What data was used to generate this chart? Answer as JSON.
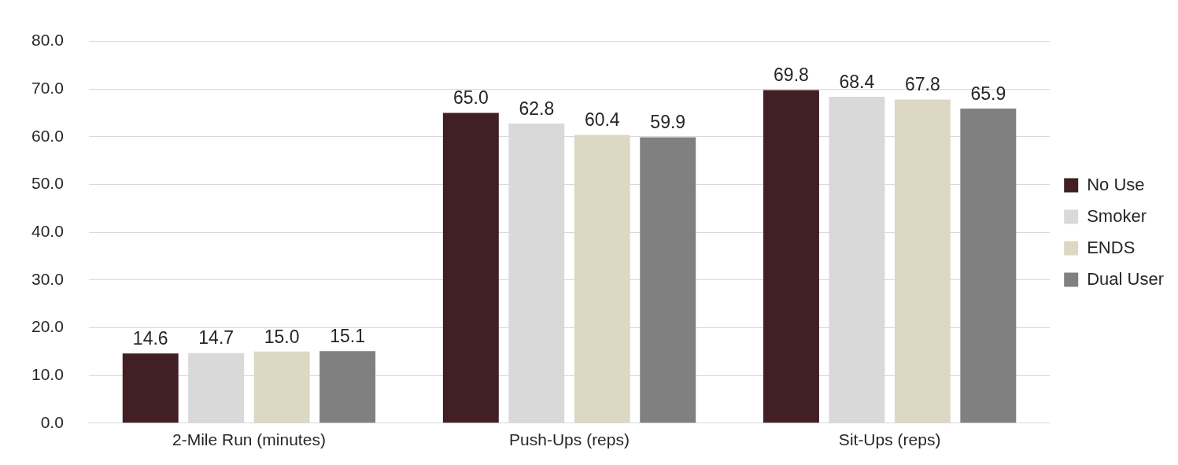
{
  "chart_data": {
    "type": "bar",
    "categories": [
      "2-Mile Run (minutes)",
      "Push-Ups (reps)",
      "Sit-Ups (reps)"
    ],
    "series": [
      {
        "name": "No Use",
        "color": "#421f24",
        "values": [
          14.6,
          65.0,
          69.8
        ],
        "value_labels": [
          "14.6",
          "65.0",
          "69.8"
        ]
      },
      {
        "name": "Smoker",
        "color": "#d9d9d9",
        "values": [
          14.7,
          62.8,
          68.4
        ],
        "value_labels": [
          "14.7",
          "62.8",
          "68.4"
        ]
      },
      {
        "name": "ENDS",
        "color": "#ddd8c3",
        "values": [
          15.0,
          60.4,
          67.8
        ],
        "value_labels": [
          "15.0",
          "60.4",
          "67.8"
        ]
      },
      {
        "name": "Dual User",
        "color": "#808080",
        "values": [
          15.1,
          59.9,
          65.9
        ],
        "value_labels": [
          "15.1",
          "59.9",
          "65.9"
        ]
      }
    ],
    "ylim": [
      0,
      80
    ],
    "yticks": [
      {
        "value": 0,
        "label": "0.0"
      },
      {
        "value": 10,
        "label": "10.0"
      },
      {
        "value": 20,
        "label": "20.0"
      },
      {
        "value": 30,
        "label": "30.0"
      },
      {
        "value": 40,
        "label": "40.0"
      },
      {
        "value": 50,
        "label": "50.0"
      },
      {
        "value": 60,
        "label": "60.0"
      },
      {
        "value": 70,
        "label": "70.0"
      },
      {
        "value": 80,
        "label": "80.0"
      }
    ],
    "grid": "y",
    "legend": "right"
  }
}
